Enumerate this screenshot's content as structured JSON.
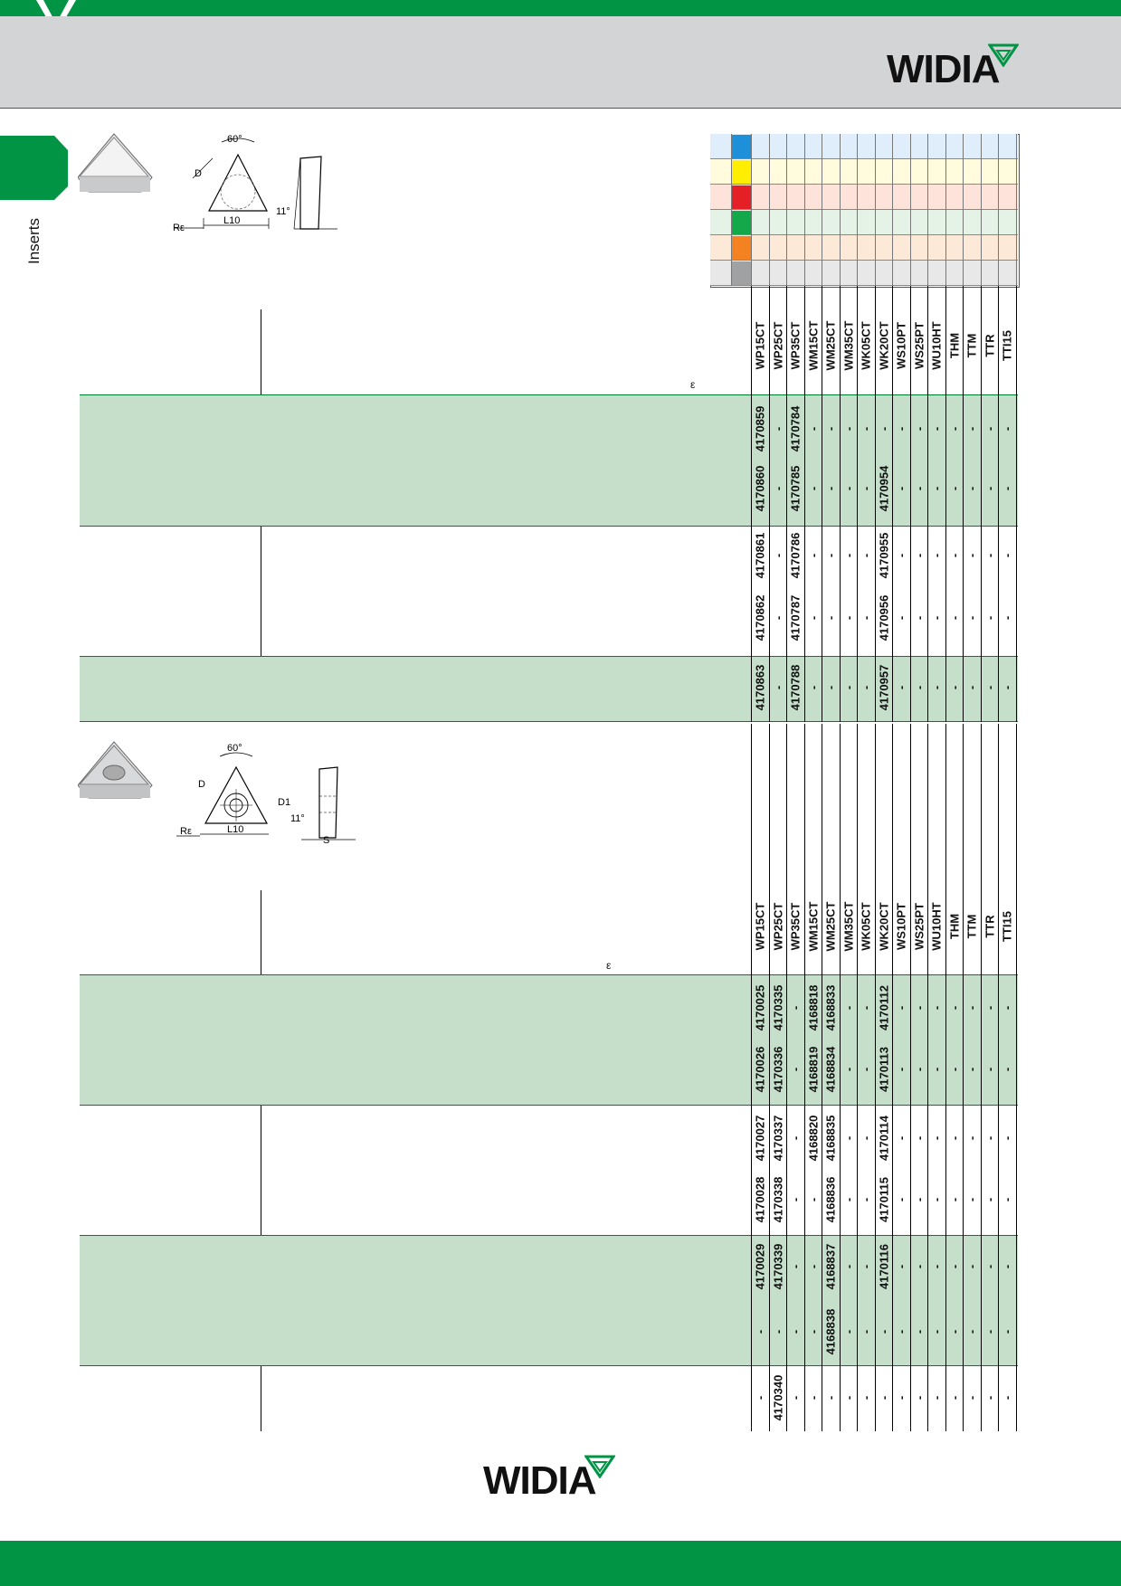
{
  "brand": {
    "name": "WIDIA",
    "trademark": "™",
    "color_green": "#009444"
  },
  "side_tab": {
    "label": "Inserts"
  },
  "material_groups": {
    "colors": [
      "#1e8fd9",
      "#ffee00",
      "#e41f26",
      "#13a84a",
      "#f58220",
      "#a0a1a3"
    ],
    "row_tints": [
      "#dfeefa",
      "#fffbdc",
      "#fde3da",
      "#e5f2e6",
      "#fde9d8",
      "#e8e8e8"
    ]
  },
  "drawings": {
    "top": {
      "angle": "60°",
      "d": "D",
      "radius": "Rε",
      "length": "L10",
      "clearance": "11°"
    },
    "bottom": {
      "angle": "60°",
      "d": "D",
      "radius": "Rε",
      "length": "L10",
      "clearance": "11°",
      "hole": "D1",
      "thickness": "S"
    }
  },
  "grades": [
    "WP15CT",
    "WP25CT",
    "WP35CT",
    "WM15CT",
    "WM25CT",
    "WM35CT",
    "WK05CT",
    "WK20CT",
    "WS10PT",
    "WS25PT",
    "WU10HT",
    "THM",
    "TTM",
    "TTR",
    "TTI15"
  ],
  "table1": {
    "epsilon": "ε",
    "rows": [
      [
        "4170859",
        "-",
        "4170784",
        "-",
        "-",
        "-",
        "-",
        "-",
        "-",
        "-",
        "-",
        "-",
        "-",
        "-",
        "-"
      ],
      [
        "4170860",
        "-",
        "4170785",
        "-",
        "-",
        "-",
        "-",
        "4170954",
        "-",
        "-",
        "-",
        "-",
        "-",
        "-",
        "-"
      ],
      [
        "4170861",
        "-",
        "4170786",
        "-",
        "-",
        "-",
        "-",
        "4170955",
        "-",
        "-",
        "-",
        "-",
        "-",
        "-",
        "-"
      ],
      [
        "4170862",
        "-",
        "4170787",
        "-",
        "-",
        "-",
        "-",
        "4170956",
        "-",
        "-",
        "-",
        "-",
        "-",
        "-",
        "-"
      ],
      [
        "4170863",
        "-",
        "4170788",
        "-",
        "-",
        "-",
        "-",
        "4170957",
        "-",
        "-",
        "-",
        "-",
        "-",
        "-",
        "-"
      ]
    ]
  },
  "table2": {
    "epsilon": "ε",
    "rows": [
      [
        "4170025",
        "4170335",
        "-",
        "4168818",
        "4168833",
        "-",
        "-",
        "4170112",
        "-",
        "-",
        "-",
        "-",
        "-",
        "-",
        "-"
      ],
      [
        "4170026",
        "4170336",
        "-",
        "4168819",
        "4168834",
        "-",
        "-",
        "4170113",
        "-",
        "-",
        "-",
        "-",
        "-",
        "-",
        "-"
      ],
      [
        "4170027",
        "4170337",
        "-",
        "4168820",
        "4168835",
        "-",
        "-",
        "4170114",
        "-",
        "-",
        "-",
        "-",
        "-",
        "-",
        "-"
      ],
      [
        "4170028",
        "4170338",
        "-",
        "-",
        "4168836",
        "-",
        "-",
        "4170115",
        "-",
        "-",
        "-",
        "-",
        "-",
        "-",
        "-"
      ],
      [
        "4170029",
        "4170339",
        "-",
        "-",
        "4168837",
        "-",
        "-",
        "4170116",
        "-",
        "-",
        "-",
        "-",
        "-",
        "-",
        "-"
      ],
      [
        "-",
        "-",
        "-",
        "-",
        "4168838",
        "-",
        "-",
        "-",
        "-",
        "-",
        "-",
        "-",
        "-",
        "-",
        "-"
      ],
      [
        "-",
        "4170340",
        "-",
        "-",
        "-",
        "-",
        "-",
        "-",
        "-",
        "-",
        "-",
        "-",
        "-",
        "-",
        "-"
      ]
    ]
  }
}
